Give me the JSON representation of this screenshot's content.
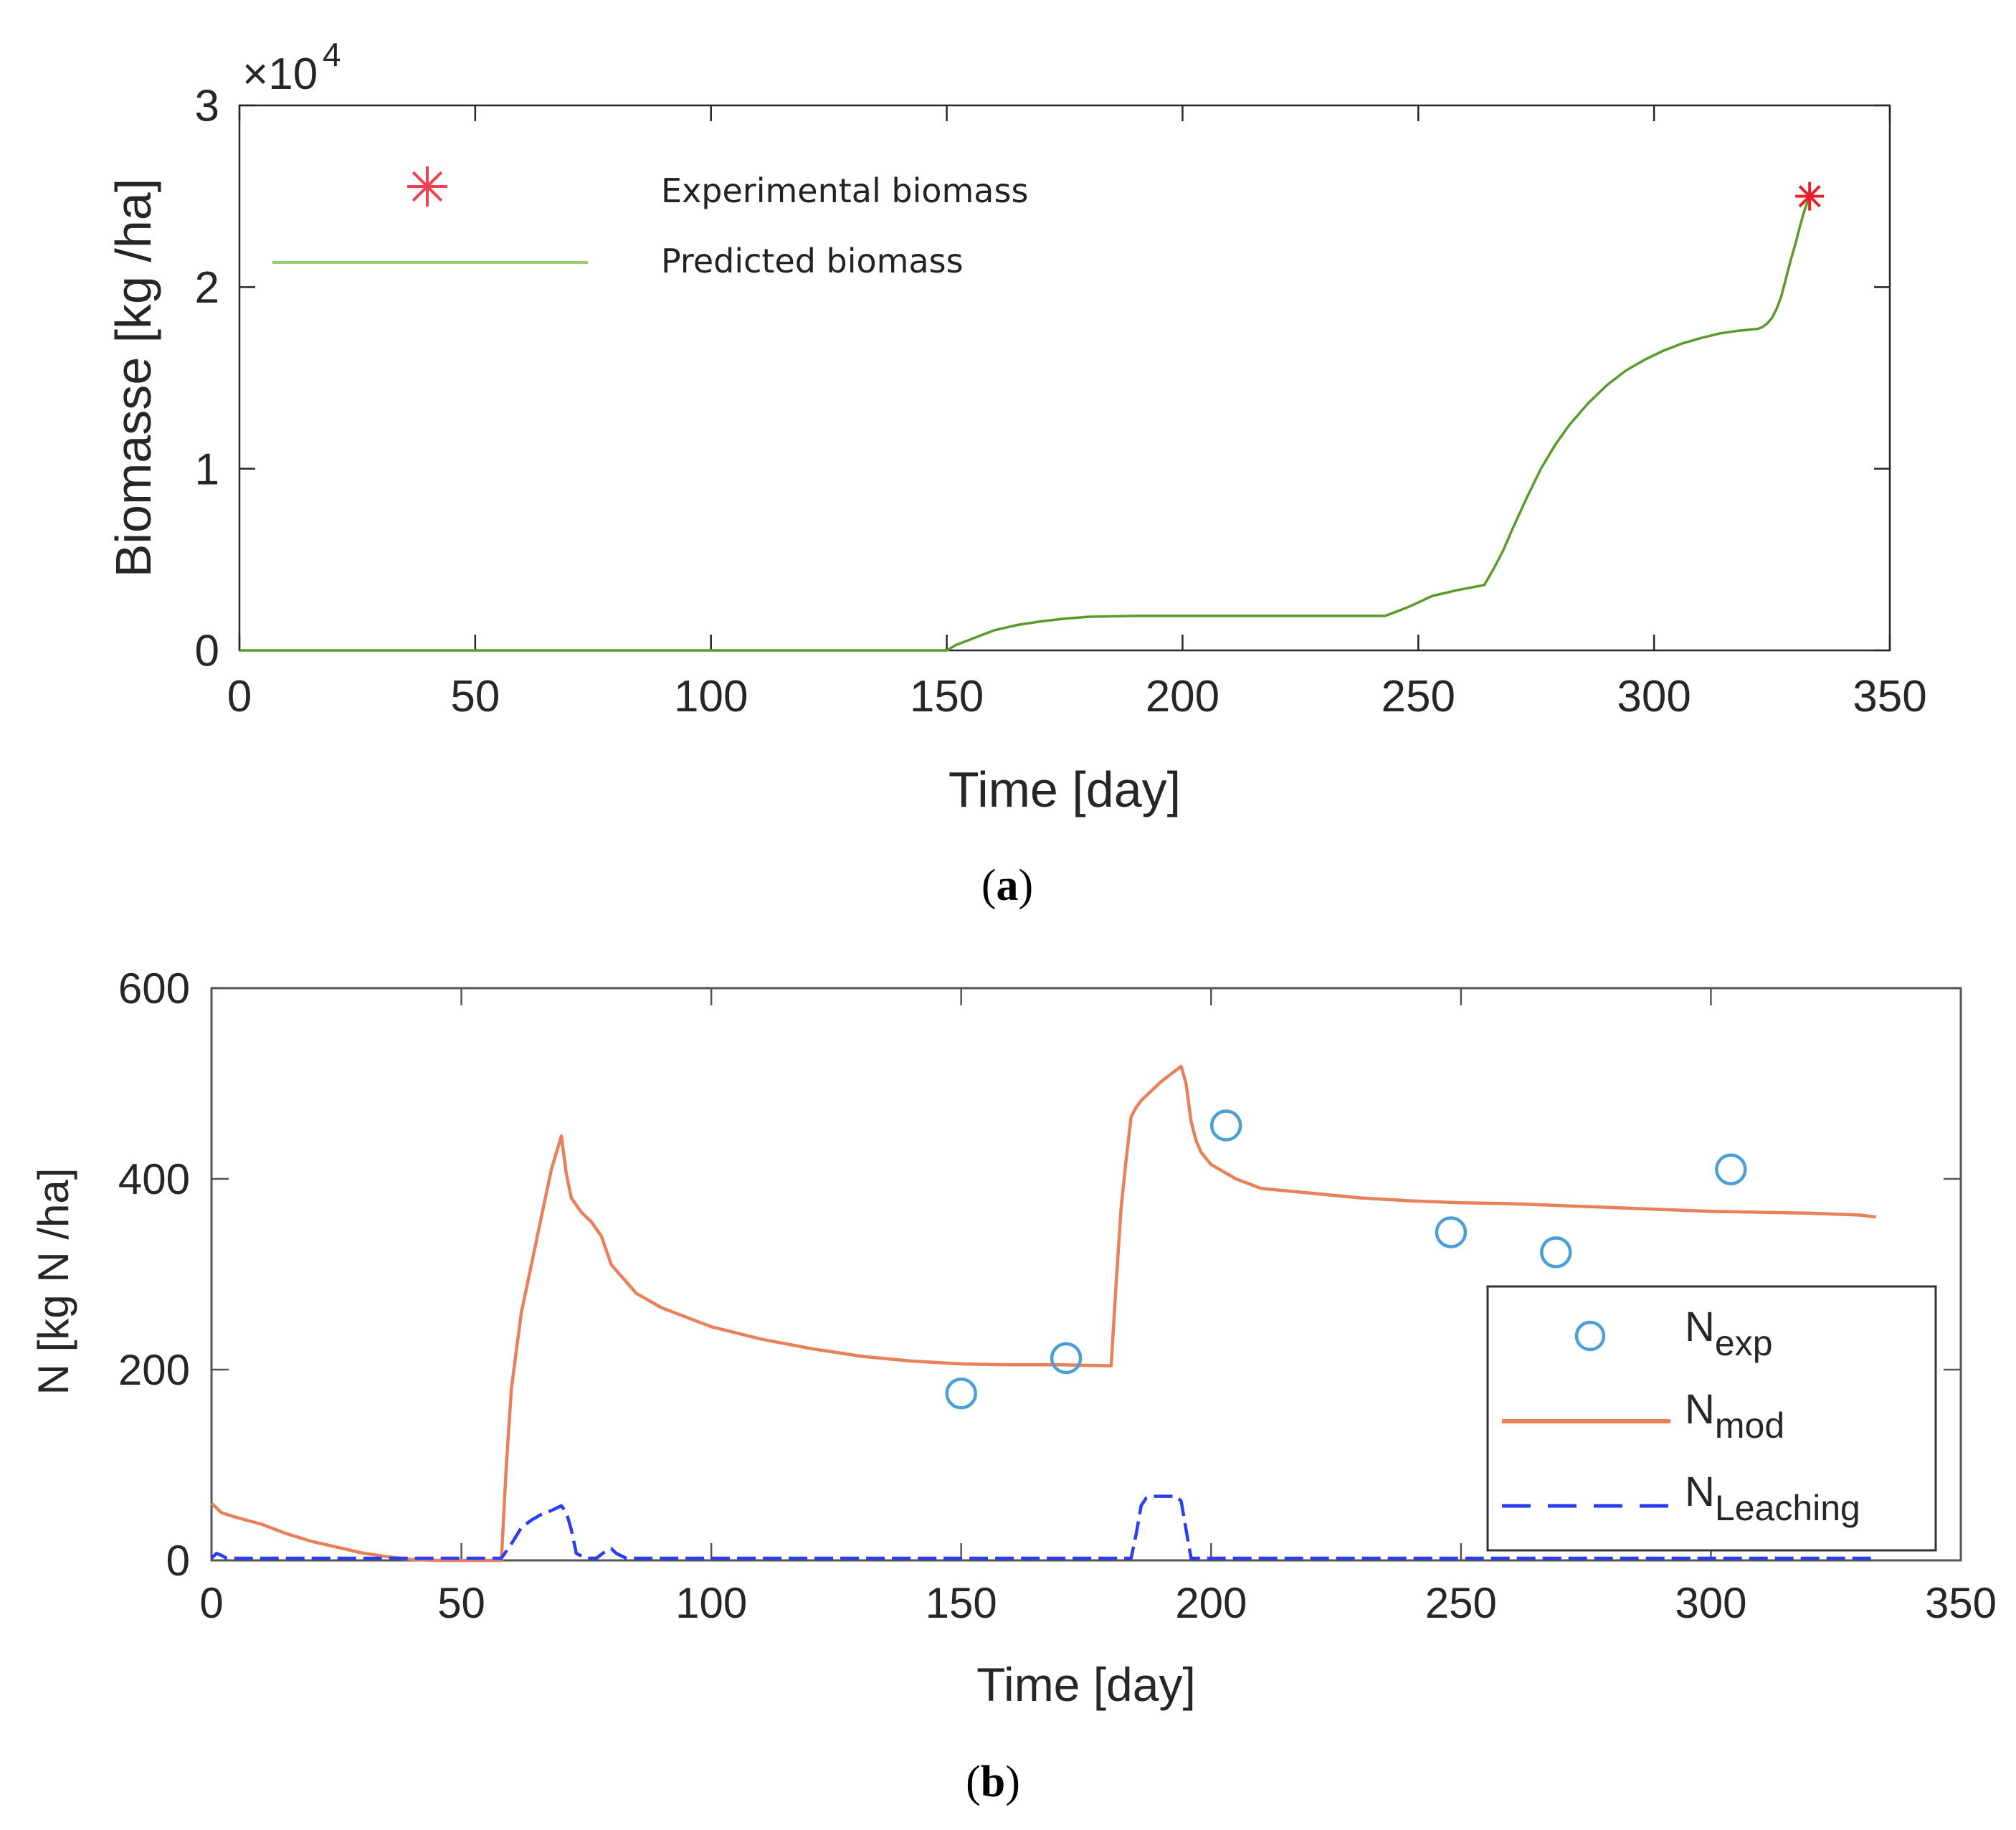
{
  "chart_data": [
    {
      "panel_label": "a",
      "type": "line",
      "title": "",
      "xlabel": "Time [day]",
      "ylabel": "Biomasse [kg /ha]",
      "y_exponent_label": "×10",
      "y_exponent_power": "4",
      "xlim": [
        0,
        350
      ],
      "ylim": [
        0,
        3
      ],
      "xticks": [
        0,
        50,
        100,
        150,
        200,
        250,
        300,
        350
      ],
      "yticks": [
        0,
        1,
        2,
        3
      ],
      "xtick_labels": [
        "0",
        "50",
        "100",
        "150",
        "200",
        "250",
        "300",
        "350"
      ],
      "ytick_labels": [
        "0",
        "1",
        "2",
        "3"
      ],
      "legend": [
        "Experimental  biomass",
        "Predicted biomass"
      ],
      "legend_position": "top-left",
      "colors": {
        "predicted": "#5a9a2a",
        "experimental": "#e8202a"
      },
      "series": [
        {
          "name": "Predicted biomass",
          "style": "line",
          "x": [
            0,
            150,
            152,
            156,
            160,
            165,
            170,
            175,
            180,
            190,
            200,
            210,
            220,
            230,
            240,
            243,
            248,
            253,
            258,
            262,
            264,
            266,
            268,
            270,
            273,
            276,
            279,
            282,
            286,
            290,
            294,
            298,
            302,
            306,
            310,
            314,
            318,
            320,
            322,
            323,
            324,
            325,
            326,
            327,
            328,
            329,
            330,
            331,
            332,
            333
          ],
          "y": [
            0,
            0,
            0.03,
            0.07,
            0.11,
            0.14,
            0.16,
            0.175,
            0.185,
            0.19,
            0.19,
            0.19,
            0.19,
            0.19,
            0.19,
            0.19,
            0.24,
            0.3,
            0.33,
            0.35,
            0.36,
            0.45,
            0.55,
            0.67,
            0.84,
            1.0,
            1.13,
            1.24,
            1.36,
            1.46,
            1.54,
            1.6,
            1.65,
            1.69,
            1.72,
            1.745,
            1.76,
            1.765,
            1.77,
            1.78,
            1.8,
            1.83,
            1.88,
            1.95,
            2.05,
            2.15,
            2.24,
            2.34,
            2.43,
            2.5
          ]
        },
        {
          "name": "Experimental  biomass",
          "style": "marker-asterisk",
          "x": [
            333
          ],
          "y": [
            2.5
          ]
        }
      ]
    },
    {
      "panel_label": "b",
      "type": "line",
      "title": "",
      "xlabel": "Time [day]",
      "ylabel": "N [kg N /ha]",
      "xlim": [
        0,
        350
      ],
      "ylim": [
        0,
        600
      ],
      "xticks": [
        0,
        50,
        100,
        150,
        200,
        250,
        300,
        350
      ],
      "yticks": [
        0,
        200,
        400,
        600
      ],
      "xtick_labels": [
        "0",
        "50",
        "100",
        "150",
        "200",
        "250",
        "300",
        "350"
      ],
      "ytick_labels": [
        "0",
        "200",
        "400",
        "600"
      ],
      "legend_position": "bottom-right",
      "legend": [
        {
          "base": "N",
          "sub": "exp"
        },
        {
          "base": "N",
          "sub": "mod"
        },
        {
          "base": "N",
          "sub": "Leaching"
        }
      ],
      "colors": {
        "exp": "#4a9fd8",
        "mod": "#e8805a",
        "leaching": "#2a3ef0"
      },
      "series": [
        {
          "name": "N_exp",
          "style": "marker-circle",
          "x": [
            150,
            171,
            203,
            248,
            269,
            304
          ],
          "y": [
            175,
            212,
            456,
            344,
            323,
            410
          ]
        },
        {
          "name": "N_mod",
          "style": "line",
          "x": [
            0,
            2,
            5,
            10,
            15,
            20,
            25,
            30,
            35,
            40,
            45,
            50,
            55,
            58,
            59,
            60,
            62,
            64,
            66,
            68,
            70,
            71,
            72,
            74,
            76,
            78,
            80,
            85,
            90,
            100,
            110,
            120,
            130,
            140,
            150,
            160,
            170,
            180,
            181,
            182,
            183,
            184,
            185,
            186,
            188,
            190,
            192,
            194,
            195,
            196,
            197,
            198,
            200,
            205,
            210,
            220,
            230,
            240,
            250,
            260,
            270,
            280,
            290,
            300,
            310,
            320,
            330,
            333
          ],
          "y": [
            60,
            50,
            45,
            38,
            28,
            20,
            14,
            8,
            4,
            1,
            0,
            0,
            0,
            0,
            100,
            180,
            260,
            310,
            360,
            410,
            445,
            405,
            380,
            365,
            355,
            340,
            310,
            280,
            265,
            245,
            232,
            222,
            214,
            209,
            206,
            205,
            205,
            204,
            290,
            370,
            420,
            465,
            475,
            482,
            492,
            502,
            510,
            518,
            500,
            460,
            440,
            428,
            415,
            400,
            390,
            385,
            380,
            377,
            375,
            374,
            372,
            370,
            368,
            366,
            365,
            364,
            362,
            360
          ]
        },
        {
          "name": "N_Leaching",
          "style": "dashed",
          "x": [
            0,
            1,
            2,
            3,
            58,
            60,
            62,
            64,
            66,
            68,
            70,
            71,
            72,
            73,
            75,
            77,
            79,
            80,
            81,
            83,
            85,
            184,
            185,
            186,
            187,
            188,
            193,
            194,
            195,
            196,
            333
          ],
          "y": [
            0,
            5,
            3,
            0,
            0,
            15,
            32,
            40,
            46,
            50,
            55,
            48,
            30,
            5,
            0,
            0,
            8,
            10,
            5,
            0,
            0,
            0,
            25,
            55,
            63,
            65,
            65,
            60,
            30,
            0,
            0
          ]
        }
      ]
    }
  ]
}
